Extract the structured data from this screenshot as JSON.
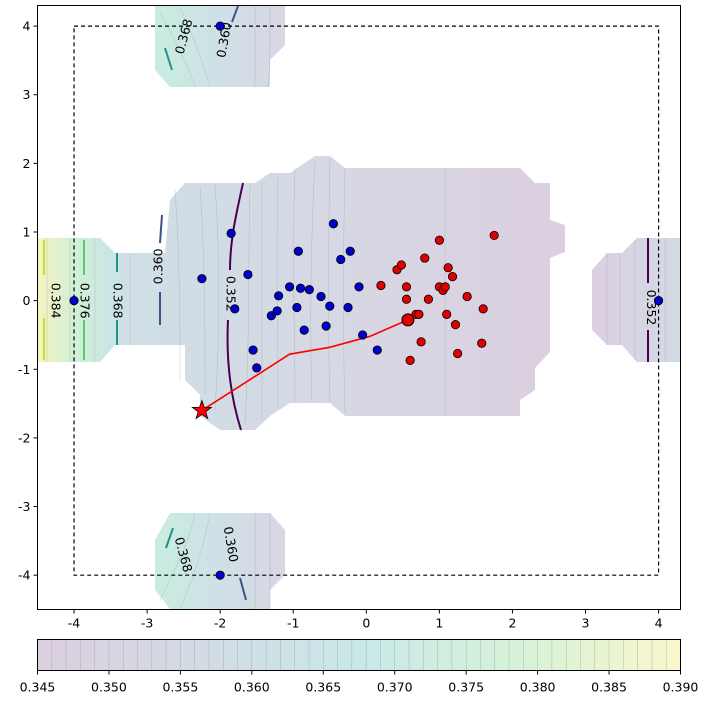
{
  "chart_data": {
    "type": "scatter",
    "title": "",
    "xlabel": "",
    "ylabel": "",
    "xlim": [
      -4.5,
      4.3
    ],
    "ylim": [
      -4.5,
      4.3
    ],
    "x_ticks": [
      -4,
      -3,
      -2,
      -1,
      0,
      1,
      2,
      3,
      4
    ],
    "y_ticks": [
      -4,
      -3,
      -2,
      -1,
      0,
      1,
      2,
      3,
      4
    ],
    "x_tick_labels": [
      "-4",
      "-3",
      "-2",
      "-1",
      "0",
      "1",
      "2",
      "3",
      "4"
    ],
    "y_tick_labels": [
      "-4",
      "-3",
      "-2",
      "-1",
      "0",
      "1",
      "2",
      "3",
      "4"
    ],
    "grid": false,
    "boundary_box": {
      "x": [
        -4,
        4
      ],
      "y": [
        -4,
        4
      ],
      "style": "dashed"
    },
    "colorbar": {
      "orientation": "horizontal",
      "range": [
        0.345,
        0.39
      ],
      "ticks": [
        0.345,
        0.35,
        0.355,
        0.36,
        0.365,
        0.37,
        0.375,
        0.38,
        0.385,
        0.39
      ],
      "tick_labels": [
        "0.345",
        "0.350",
        "0.355",
        "0.360",
        "0.365",
        "0.370",
        "0.375",
        "0.380",
        "0.385",
        "0.390"
      ],
      "colors": [
        "#dccfe0",
        "#d3dbe4",
        "#c9e8e8",
        "#d6f2d8",
        "#faf7cc"
      ]
    },
    "contour_labels": [
      {
        "text": "0.368",
        "x": -2.5,
        "y": 3.85,
        "rotation": -75
      },
      {
        "text": "0.360",
        "x": -1.95,
        "y": 3.8,
        "rotation": -80
      },
      {
        "text": "0.384",
        "x": -4.25,
        "y": 0.0,
        "rotation": 90
      },
      {
        "text": "0.376",
        "x": -3.85,
        "y": 0.0,
        "rotation": 90
      },
      {
        "text": "0.368",
        "x": -3.4,
        "y": 0.0,
        "rotation": 90
      },
      {
        "text": "0.360",
        "x": -2.85,
        "y": 0.5,
        "rotation": -90
      },
      {
        "text": "0.352",
        "x": -1.85,
        "y": 0.1,
        "rotation": 90
      },
      {
        "text": "0.352",
        "x": 3.9,
        "y": -0.1,
        "rotation": 90
      },
      {
        "text": "0.368",
        "x": -2.5,
        "y": -3.7,
        "rotation": 75
      },
      {
        "text": "0.360",
        "x": -1.85,
        "y": -3.55,
        "rotation": 80
      }
    ],
    "series": [
      {
        "name": "blue",
        "color": "#0000cc",
        "points": [
          [
            -2.0,
            4.0
          ],
          [
            -4.0,
            0.0
          ],
          [
            -2.0,
            -4.0
          ],
          [
            4.0,
            0.0
          ],
          [
            -1.85,
            0.98
          ],
          [
            -2.25,
            0.32
          ],
          [
            -1.8,
            -0.12
          ],
          [
            -1.62,
            0.38
          ],
          [
            -1.55,
            -0.72
          ],
          [
            -1.5,
            -0.98
          ],
          [
            -1.3,
            -0.22
          ],
          [
            -1.2,
            0.07
          ],
          [
            -1.22,
            -0.15
          ],
          [
            -1.05,
            0.2
          ],
          [
            -0.95,
            -0.1
          ],
          [
            -0.93,
            0.72
          ],
          [
            -0.9,
            0.18
          ],
          [
            -0.85,
            -0.43
          ],
          [
            -0.78,
            0.16
          ],
          [
            -0.62,
            0.06
          ],
          [
            -0.55,
            -0.37
          ],
          [
            -0.5,
            -0.08
          ],
          [
            -0.45,
            1.12
          ],
          [
            -0.35,
            0.6
          ],
          [
            -0.22,
            0.72
          ],
          [
            -0.25,
            -0.1
          ],
          [
            -0.1,
            0.2
          ],
          [
            -0.05,
            -0.5
          ],
          [
            0.15,
            -0.72
          ]
        ]
      },
      {
        "name": "red",
        "color": "#e00000",
        "points": [
          [
            0.2,
            0.22
          ],
          [
            0.42,
            0.45
          ],
          [
            0.48,
            0.52
          ],
          [
            0.55,
            0.2
          ],
          [
            0.55,
            0.02
          ],
          [
            0.58,
            -0.28
          ],
          [
            0.6,
            -0.87
          ],
          [
            0.68,
            -0.2
          ],
          [
            0.72,
            -0.2
          ],
          [
            0.75,
            -0.6
          ],
          [
            0.8,
            0.62
          ],
          [
            0.85,
            0.02
          ],
          [
            1.0,
            0.88
          ],
          [
            1.0,
            0.2
          ],
          [
            1.05,
            0.15
          ],
          [
            1.08,
            0.2
          ],
          [
            1.1,
            -0.2
          ],
          [
            1.12,
            0.48
          ],
          [
            1.18,
            0.35
          ],
          [
            1.22,
            -0.35
          ],
          [
            1.25,
            -0.77
          ],
          [
            1.38,
            0.06
          ],
          [
            1.58,
            -0.62
          ],
          [
            1.6,
            -0.12
          ],
          [
            1.75,
            0.95
          ]
        ]
      }
    ],
    "highlight_point": [
      0.57,
      -0.28
    ],
    "start_marker": {
      "x": -2.25,
      "y": -1.6,
      "marker": "star",
      "color": "#ff0000"
    },
    "path_line": {
      "color": "#ff0000",
      "points": [
        [
          -2.25,
          -1.6
        ],
        [
          -1.05,
          -0.78
        ],
        [
          -0.5,
          -0.68
        ],
        [
          0.05,
          -0.52
        ],
        [
          0.57,
          -0.28
        ]
      ]
    }
  }
}
